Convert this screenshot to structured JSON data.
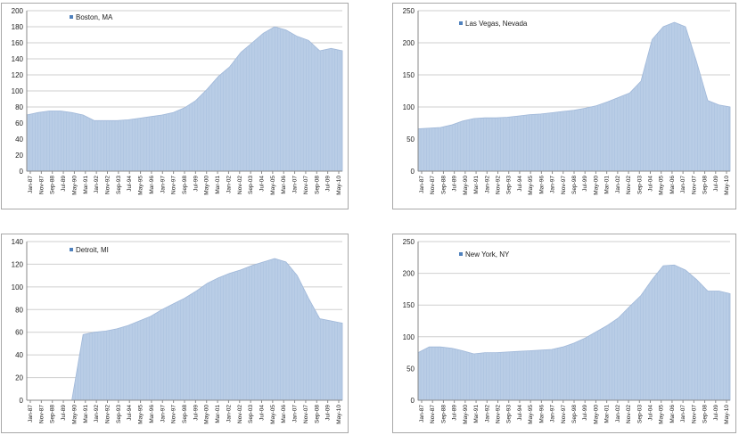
{
  "chart_data": [
    {
      "type": "area",
      "title": "",
      "legend": "Boston, MA",
      "ylim": [
        0,
        200
      ],
      "yticks": [
        "0",
        "20",
        "40",
        "60",
        "80",
        "100",
        "120",
        "140",
        "160",
        "180",
        "200"
      ],
      "xticks": [
        "Jan-87",
        "Nov-87",
        "Sep-88",
        "Jul-89",
        "May-90",
        "Mar-91",
        "Jan-92",
        "Nov-92",
        "Sep-93",
        "Jul-94",
        "May-95",
        "Mar-96",
        "Jan-97",
        "Nov-97",
        "Sep-98",
        "Jul-99",
        "May-00",
        "Mar-01",
        "Jan-02",
        "Nov-02",
        "Sep-03",
        "Jul-04",
        "May-05",
        "Mar-06",
        "Jan-07",
        "Nov-07",
        "Sep-08",
        "Jul-09",
        "May-10"
      ],
      "values": [
        70,
        73,
        75,
        75,
        73,
        70,
        63,
        63,
        63,
        64,
        66,
        68,
        70,
        73,
        79,
        88,
        102,
        118,
        130,
        148,
        160,
        172,
        180,
        176,
        168,
        163,
        150,
        153,
        150
      ],
      "color": "#b9cde6"
    },
    {
      "type": "area",
      "title": "",
      "legend": "Las Vegas, Nevada",
      "ylim": [
        0,
        250
      ],
      "yticks": [
        "0",
        "50",
        "100",
        "150",
        "200",
        "250"
      ],
      "xticks": [
        "Jan-87",
        "Nov-87",
        "Sep-88",
        "Jul-89",
        "May-90",
        "Mar-91",
        "Jan-92",
        "Nov-92",
        "Sep-93",
        "Jul-94",
        "May-95",
        "Mar-96",
        "Jan-97",
        "Nov-97",
        "Sep-98",
        "Jul-99",
        "May-00",
        "Mar-01",
        "Jan-02",
        "Nov-02",
        "Sep-03",
        "Jul-04",
        "May-05",
        "Mar-06",
        "Jan-07",
        "Nov-07",
        "Sep-08",
        "Jul-09",
        "May-10"
      ],
      "values": [
        66,
        67,
        68,
        72,
        78,
        82,
        83,
        83,
        84,
        86,
        88,
        89,
        91,
        93,
        95,
        98,
        102,
        108,
        115,
        122,
        140,
        205,
        225,
        232,
        225,
        170,
        110,
        103,
        100
      ],
      "color": "#b9cde6"
    },
    {
      "type": "area",
      "title": "",
      "legend": "Detroit, MI",
      "ylim": [
        0,
        140
      ],
      "yticks": [
        "0",
        "20",
        "40",
        "60",
        "80",
        "100",
        "120",
        "140"
      ],
      "xticks": [
        "Jan-87",
        "Nov-87",
        "Sep-88",
        "Jul-89",
        "May-90",
        "Mar-91",
        "Jan-92",
        "Nov-92",
        "Sep-93",
        "Jul-94",
        "May-95",
        "Mar-96",
        "Jan-97",
        "Nov-97",
        "Sep-98",
        "Jul-99",
        "May-00",
        "Mar-01",
        "Jan-02",
        "Nov-02",
        "Sep-03",
        "Jul-04",
        "May-05",
        "Mar-06",
        "Jan-07",
        "Nov-07",
        "Sep-08",
        "Jul-09",
        "May-10"
      ],
      "values": [
        0,
        0,
        0,
        0,
        0,
        58,
        60,
        61,
        63,
        66,
        70,
        74,
        80,
        85,
        90,
        96,
        103,
        108,
        112,
        115,
        119,
        122,
        125,
        122,
        110,
        90,
        72,
        70,
        68
      ],
      "color": "#b9cde6"
    },
    {
      "type": "area",
      "title": "",
      "legend": "New York, NY",
      "ylim": [
        0,
        250
      ],
      "yticks": [
        "0",
        "50",
        "100",
        "150",
        "200",
        "250"
      ],
      "xticks": [
        "Jan-87",
        "Nov-87",
        "Sep-88",
        "Jul-89",
        "May-90",
        "Mar-91",
        "Jan-92",
        "Nov-92",
        "Sep-93",
        "Jul-94",
        "May-95",
        "Mar-96",
        "Jan-97",
        "Nov-97",
        "Sep-98",
        "Jul-99",
        "May-00",
        "Mar-01",
        "Jan-02",
        "Nov-02",
        "Sep-03",
        "Jul-04",
        "May-05",
        "Mar-06",
        "Jan-07",
        "Nov-07",
        "Sep-08",
        "Jul-09",
        "May-10"
      ],
      "values": [
        75,
        84,
        84,
        82,
        78,
        73,
        75,
        75,
        76,
        77,
        78,
        79,
        80,
        84,
        90,
        98,
        108,
        118,
        130,
        148,
        165,
        190,
        212,
        213,
        205,
        190,
        172,
        172,
        168
      ],
      "color": "#b9cde6"
    }
  ]
}
